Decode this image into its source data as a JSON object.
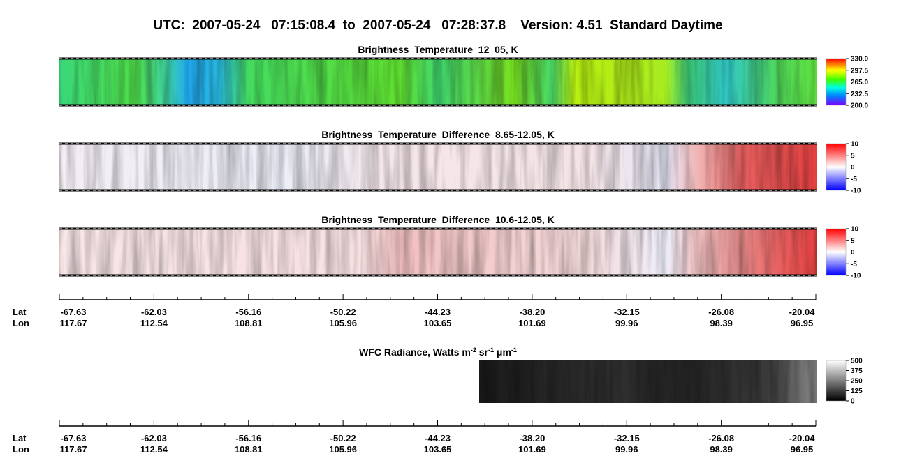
{
  "title": "UTC:  2007-05-24   07:15:08.4  to  2007-05-24   07:28:37.8    Version: 4.51  Standard Daytime",
  "panels": [
    {
      "title": "Brightness_Temperature_12_05, K",
      "colorbar": [
        "330.0",
        "297.5",
        "265.0",
        "232.5",
        "200.0"
      ]
    },
    {
      "title": "Brightness_Temperature_Difference_8.65-12.05, K",
      "colorbar": [
        "10",
        "5",
        "0",
        "-5",
        "-10"
      ]
    },
    {
      "title": "Brightness_Temperature_Difference_10.6-12.05, K",
      "colorbar": [
        "10",
        "5",
        "0",
        "-5",
        "-10"
      ]
    }
  ],
  "wfc": {
    "title_parts": [
      "WFC Radiance, Watts m",
      "-2",
      " sr",
      "-1",
      " μm",
      "-1"
    ],
    "colorbar": [
      "500",
      "375",
      "250",
      "125",
      "0"
    ]
  },
  "axis": {
    "lat_label": "Lat",
    "lon_label": "Lon",
    "lat": [
      "-67.63",
      "-62.03",
      "-56.16",
      "-50.22",
      "-44.23",
      "-38.20",
      "-32.15",
      "-26.08",
      "-20.04"
    ],
    "lon": [
      "117.67",
      "112.54",
      "108.81",
      "105.96",
      "103.65",
      "101.69",
      "99.96",
      "98.39",
      "96.95"
    ]
  }
}
